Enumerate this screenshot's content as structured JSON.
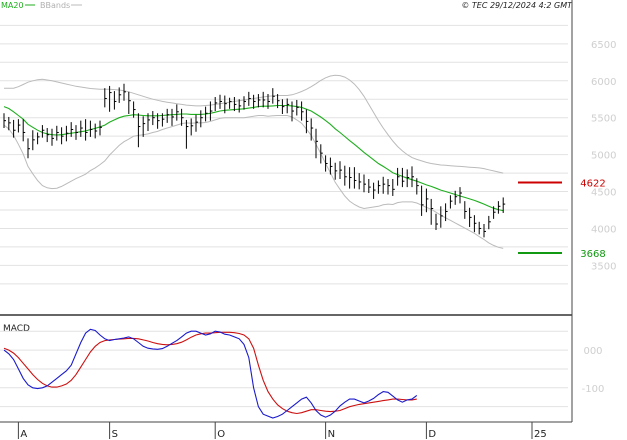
{
  "header": {
    "legend_ma20": "MA20",
    "legend_bbands": "BBands",
    "timestamp": "© TEC 29/12/2024 4:2 GMT"
  },
  "colors": {
    "price_bars": "#000000",
    "ma20": "#1fae1f",
    "bbands": "#bbbbbb",
    "resistance": "#cc0000",
    "support": "#119911",
    "macd": "#1a1acc",
    "signal": "#cc1111",
    "grid": "#e2e2e2",
    "axis_text": "#cfcfcf"
  },
  "chart_data": [
    {
      "type": "ohlc",
      "panel": "price",
      "y_ticks": [
        "6500",
        "6000",
        "5500",
        "5000",
        "4500",
        "4000",
        "3500"
      ],
      "y_tick_values": [
        6500,
        6000,
        5500,
        5000,
        4500,
        4000,
        3500
      ],
      "ylim": [
        2950,
        6850
      ],
      "x_ticks": [
        "A",
        "S",
        "O",
        "N",
        "D",
        "25"
      ],
      "x_tick_index": [
        3,
        22,
        44,
        67,
        88,
        110
      ],
      "n_periods": 110,
      "legend": [
        "MA20",
        "BBands"
      ],
      "series": [
        {
          "name": "price",
          "start_index": 0,
          "close": [
            5460,
            5430,
            5330,
            5400,
            5300,
            5080,
            5200,
            5240,
            5330,
            5270,
            5220,
            5300,
            5250,
            5290,
            5340,
            5300,
            5360,
            5300,
            5340,
            5320,
            5370,
            5760,
            5840,
            5720,
            5810,
            5850,
            5730,
            5610,
            5380,
            5420,
            5470,
            5500,
            5460,
            5480,
            5540,
            5510,
            5580,
            5500,
            5380,
            5390,
            5440,
            5500,
            5560,
            5590,
            5700,
            5720,
            5690,
            5720,
            5680,
            5660,
            5720,
            5760,
            5720,
            5740,
            5740,
            5720,
            5790,
            5730,
            5650,
            5680,
            5590,
            5640,
            5580,
            5450,
            5360,
            5180,
            5020,
            4880,
            4840,
            4780,
            4790,
            4700,
            4690,
            4650,
            4630,
            4600,
            4560,
            4520,
            4580,
            4600,
            4580,
            4530,
            4700,
            4640,
            4690,
            4700,
            4580,
            4320,
            4400,
            4270,
            4060,
            4170,
            4230,
            4370,
            4430,
            4480,
            4230,
            4150,
            4070,
            4000,
            3960,
            4090,
            4220,
            4300,
            4330
          ],
          "high": [
            5560,
            5510,
            5470,
            5480,
            5480,
            5220,
            5330,
            5300,
            5400,
            5360,
            5350,
            5390,
            5370,
            5390,
            5440,
            5400,
            5460,
            5480,
            5460,
            5420,
            5460,
            5900,
            5930,
            5860,
            5910,
            5960,
            5850,
            5720,
            5560,
            5520,
            5560,
            5590,
            5560,
            5560,
            5620,
            5620,
            5680,
            5620,
            5470,
            5490,
            5540,
            5600,
            5650,
            5720,
            5780,
            5810,
            5800,
            5770,
            5780,
            5750,
            5790,
            5850,
            5810,
            5820,
            5850,
            5820,
            5900,
            5820,
            5750,
            5760,
            5720,
            5740,
            5720,
            5610,
            5490,
            5350,
            5140,
            4990,
            4960,
            4890,
            4910,
            4850,
            4830,
            4830,
            4750,
            4730,
            4670,
            4620,
            4650,
            4700,
            4670,
            4670,
            4820,
            4820,
            4800,
            4840,
            4680,
            4580,
            4540,
            4400,
            4200,
            4300,
            4340,
            4450,
            4510,
            4560,
            4370,
            4280,
            4180,
            4090,
            4060,
            4170,
            4300,
            4370,
            4420
          ],
          "low": [
            5360,
            5330,
            5230,
            5300,
            5180,
            4950,
            5060,
            5140,
            5230,
            5170,
            5120,
            5190,
            5140,
            5180,
            5240,
            5200,
            5240,
            5190,
            5240,
            5220,
            5260,
            5640,
            5580,
            5610,
            5700,
            5730,
            5550,
            5500,
            5100,
            5240,
            5320,
            5400,
            5350,
            5380,
            5430,
            5390,
            5460,
            5390,
            5080,
            5260,
            5310,
            5370,
            5450,
            5460,
            5590,
            5620,
            5560,
            5620,
            5590,
            5570,
            5610,
            5660,
            5620,
            5640,
            5640,
            5620,
            5690,
            5630,
            5550,
            5560,
            5450,
            5530,
            5460,
            5290,
            5190,
            4950,
            4880,
            4770,
            4730,
            4660,
            4670,
            4580,
            4540,
            4540,
            4530,
            4490,
            4480,
            4400,
            4470,
            4470,
            4460,
            4440,
            4580,
            4560,
            4560,
            4560,
            4460,
            4170,
            4220,
            4050,
            3980,
            4010,
            4100,
            4270,
            4320,
            4340,
            4130,
            4020,
            3950,
            3920,
            3880,
            3990,
            4130,
            4200,
            4210
          ]
        },
        {
          "name": "MA20",
          "start_index": 0,
          "values": [
            5650,
            5625,
            5580,
            5530,
            5480,
            5410,
            5370,
            5330,
            5300,
            5280,
            5270,
            5265,
            5270,
            5280,
            5290,
            5300,
            5310,
            5320,
            5340,
            5355,
            5375,
            5400,
            5440,
            5470,
            5500,
            5520,
            5530,
            5540,
            5535,
            5530,
            5525,
            5525,
            5525,
            5530,
            5535,
            5540,
            5545,
            5550,
            5550,
            5545,
            5545,
            5545,
            5550,
            5560,
            5575,
            5590,
            5600,
            5605,
            5610,
            5615,
            5620,
            5630,
            5640,
            5650,
            5655,
            5655,
            5660,
            5665,
            5665,
            5665,
            5660,
            5650,
            5640,
            5615,
            5590,
            5550,
            5510,
            5460,
            5410,
            5350,
            5300,
            5245,
            5190,
            5140,
            5085,
            5030,
            4980,
            4930,
            4880,
            4840,
            4800,
            4755,
            4730,
            4705,
            4680,
            4660,
            4640,
            4615,
            4590,
            4570,
            4545,
            4520,
            4500,
            4480,
            4460,
            4440,
            4420,
            4400,
            4380,
            4355,
            4330,
            4300,
            4275,
            4255,
            4240
          ]
        },
        {
          "name": "BBands upper",
          "start_index": 0,
          "values": [
            5900,
            5900,
            5900,
            5920,
            5950,
            5980,
            6000,
            6015,
            6020,
            6010,
            6000,
            5985,
            5970,
            5955,
            5940,
            5925,
            5915,
            5905,
            5895,
            5890,
            5885,
            5885,
            5885,
            5880,
            5875,
            5865,
            5850,
            5830,
            5810,
            5790,
            5770,
            5750,
            5735,
            5720,
            5710,
            5700,
            5690,
            5680,
            5670,
            5665,
            5660,
            5660,
            5665,
            5670,
            5680,
            5690,
            5700,
            5710,
            5720,
            5730,
            5740,
            5750,
            5760,
            5770,
            5780,
            5790,
            5795,
            5800,
            5800,
            5800,
            5810,
            5830,
            5855,
            5885,
            5920,
            5960,
            6005,
            6040,
            6065,
            6075,
            6070,
            6050,
            6010,
            5955,
            5880,
            5790,
            5680,
            5570,
            5460,
            5360,
            5270,
            5185,
            5110,
            5050,
            5000,
            4960,
            4935,
            4915,
            4895,
            4880,
            4870,
            4860,
            4855,
            4850,
            4845,
            4840,
            4835,
            4830,
            4825,
            4820,
            4810,
            4795,
            4780,
            4765,
            4750
          ]
        },
        {
          "name": "BBands lower",
          "start_index": 0,
          "values": [
            5400,
            5350,
            5260,
            5140,
            5010,
            4840,
            4740,
            4650,
            4580,
            4550,
            4540,
            4545,
            4570,
            4605,
            4640,
            4675,
            4705,
            4735,
            4785,
            4820,
            4865,
            4915,
            4995,
            5060,
            5125,
            5175,
            5210,
            5250,
            5260,
            5270,
            5280,
            5300,
            5315,
            5340,
            5360,
            5380,
            5400,
            5420,
            5430,
            5425,
            5430,
            5430,
            5435,
            5450,
            5470,
            5490,
            5500,
            5500,
            5500,
            5500,
            5500,
            5510,
            5520,
            5530,
            5530,
            5520,
            5525,
            5530,
            5530,
            5530,
            5510,
            5470,
            5425,
            5345,
            5260,
            5140,
            5015,
            4880,
            4755,
            4625,
            4530,
            4440,
            4370,
            4325,
            4290,
            4270,
            4280,
            4290,
            4300,
            4320,
            4330,
            4325,
            4350,
            4360,
            4360,
            4360,
            4345,
            4315,
            4285,
            4260,
            4220,
            4180,
            4145,
            4110,
            4075,
            4040,
            4005,
            3970,
            3935,
            3890,
            3850,
            3805,
            3770,
            3745,
            3730
          ]
        }
      ],
      "annotations": [
        {
          "label": "4622",
          "value": 4622,
          "color": "#cc0000"
        },
        {
          "label": "3668",
          "value": 3668,
          "color": "#119911"
        }
      ]
    },
    {
      "type": "line",
      "panel": "macd",
      "title": "MACD",
      "y_ticks": [
        "000",
        "-100"
      ],
      "y_tick_values": [
        0,
        -100
      ],
      "ylim": [
        -180,
        85
      ],
      "series": [
        {
          "name": "MACD",
          "start_index": 0,
          "values": [
            0,
            -10,
            -25,
            -50,
            -75,
            -92,
            -100,
            -102,
            -100,
            -95,
            -85,
            -75,
            -65,
            -55,
            -40,
            -10,
            20,
            45,
            55,
            52,
            40,
            30,
            25,
            28,
            30,
            32,
            35,
            30,
            20,
            10,
            5,
            3,
            2,
            4,
            10,
            18,
            25,
            35,
            45,
            50,
            50,
            45,
            40,
            43,
            50,
            48,
            42,
            40,
            35,
            30,
            15,
            -20,
            -100,
            -150,
            -170,
            -175,
            -180,
            -176,
            -170,
            -160,
            -150,
            -140,
            -130,
            -125,
            -140,
            -160,
            -172,
            -178,
            -172,
            -162,
            -148,
            -138,
            -130,
            -130,
            -135,
            -140,
            -135,
            -128,
            -118,
            -110,
            -112,
            -122,
            -132,
            -138,
            -132,
            -130,
            -120
          ]
        },
        {
          "name": "Signal",
          "start_index": 0,
          "values": [
            5,
            0,
            -8,
            -20,
            -35,
            -50,
            -65,
            -78,
            -88,
            -95,
            -98,
            -98,
            -95,
            -90,
            -80,
            -65,
            -45,
            -25,
            -5,
            10,
            20,
            25,
            27,
            28,
            29,
            30,
            31,
            31,
            30,
            27,
            24,
            20,
            17,
            15,
            14,
            15,
            17,
            21,
            27,
            34,
            40,
            43,
            45,
            45,
            46,
            47,
            47,
            47,
            46,
            44,
            40,
            30,
            5,
            -40,
            -80,
            -110,
            -130,
            -145,
            -155,
            -162,
            -166,
            -168,
            -166,
            -162,
            -158,
            -158,
            -160,
            -162,
            -163,
            -162,
            -160,
            -155,
            -150,
            -147,
            -144,
            -142,
            -140,
            -138,
            -136,
            -134,
            -132,
            -130,
            -130,
            -131,
            -132,
            -132,
            -130
          ]
        }
      ]
    }
  ]
}
